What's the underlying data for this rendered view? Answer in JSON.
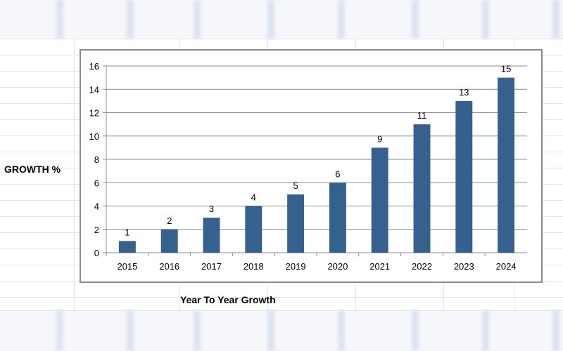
{
  "chart_data": {
    "type": "bar",
    "categories": [
      "2015",
      "2016",
      "2017",
      "2018",
      "2019",
      "2020",
      "2021",
      "2022",
      "2023",
      "2024"
    ],
    "values": [
      1,
      2,
      3,
      4,
      5,
      6,
      9,
      11,
      13,
      15
    ],
    "title": "",
    "xlabel": "Year To Year Growth",
    "ylabel": "GROWTH %",
    "ylim": [
      0,
      16
    ],
    "yticks": [
      "0",
      "2",
      "4",
      "6",
      "8",
      "10",
      "12",
      "14",
      "16"
    ],
    "grid": true,
    "legend": "none",
    "bar_color": "#35618f",
    "data_labels": true
  }
}
